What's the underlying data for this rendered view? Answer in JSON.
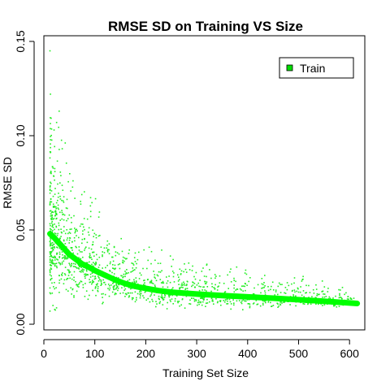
{
  "chart_data": {
    "type": "scatter",
    "title": "RMSE SD on Training VS Size",
    "xlabel": "Training Set Size",
    "ylabel": "RMSE SD",
    "xlim": [
      0,
      630
    ],
    "ylim": [
      -0.003,
      0.153
    ],
    "x_ticks": [
      0,
      100,
      200,
      300,
      400,
      500,
      600
    ],
    "x_tick_labels": [
      "0",
      "100",
      "200",
      "300",
      "400",
      "500",
      "600"
    ],
    "y_ticks": [
      0.0,
      0.05,
      0.1,
      0.15
    ],
    "y_tick_labels": [
      "0.00",
      "0.05",
      "0.10",
      "0.15"
    ],
    "grid": false,
    "legend": {
      "position": "top-right",
      "entries": [
        {
          "label": "Train",
          "color": "#00dd00"
        }
      ]
    },
    "colors": {
      "points": "#22ee22",
      "trend": "#00ff00"
    },
    "series": [
      {
        "name": "Train",
        "kind": "scatter-cloud",
        "note_points": "dense cloud of ~1500 points; envelope listed as x with approx lower/upper y bounds",
        "envelope": [
          {
            "x": 12,
            "ymin": 0.002,
            "ymax": 0.145
          },
          {
            "x": 20,
            "ymin": 0.005,
            "ymax": 0.105
          },
          {
            "x": 30,
            "ymin": 0.008,
            "ymax": 0.113
          },
          {
            "x": 50,
            "ymin": 0.008,
            "ymax": 0.085
          },
          {
            "x": 75,
            "ymin": 0.006,
            "ymax": 0.08
          },
          {
            "x": 100,
            "ymin": 0.008,
            "ymax": 0.07
          },
          {
            "x": 130,
            "ymin": 0.01,
            "ymax": 0.054
          },
          {
            "x": 170,
            "ymin": 0.008,
            "ymax": 0.045
          },
          {
            "x": 220,
            "ymin": 0.006,
            "ymax": 0.04
          },
          {
            "x": 280,
            "ymin": 0.006,
            "ymax": 0.038
          },
          {
            "x": 350,
            "ymin": 0.008,
            "ymax": 0.031
          },
          {
            "x": 420,
            "ymin": 0.006,
            "ymax": 0.03
          },
          {
            "x": 500,
            "ymin": 0.01,
            "ymax": 0.026
          },
          {
            "x": 580,
            "ymin": 0.008,
            "ymax": 0.022
          },
          {
            "x": 615,
            "ymin": 0.01,
            "ymax": 0.018
          }
        ]
      },
      {
        "name": "trend",
        "kind": "line",
        "x": [
          12,
          20,
          30,
          40,
          50,
          60,
          75,
          90,
          100,
          120,
          140,
          160,
          180,
          200,
          225,
          250,
          300,
          350,
          400,
          450,
          500,
          550,
          615
        ],
        "y": [
          0.048,
          0.046,
          0.043,
          0.04,
          0.037,
          0.035,
          0.032,
          0.03,
          0.0285,
          0.026,
          0.0235,
          0.0215,
          0.02,
          0.019,
          0.0178,
          0.017,
          0.016,
          0.0152,
          0.0145,
          0.0138,
          0.013,
          0.0122,
          0.011
        ]
      }
    ]
  }
}
